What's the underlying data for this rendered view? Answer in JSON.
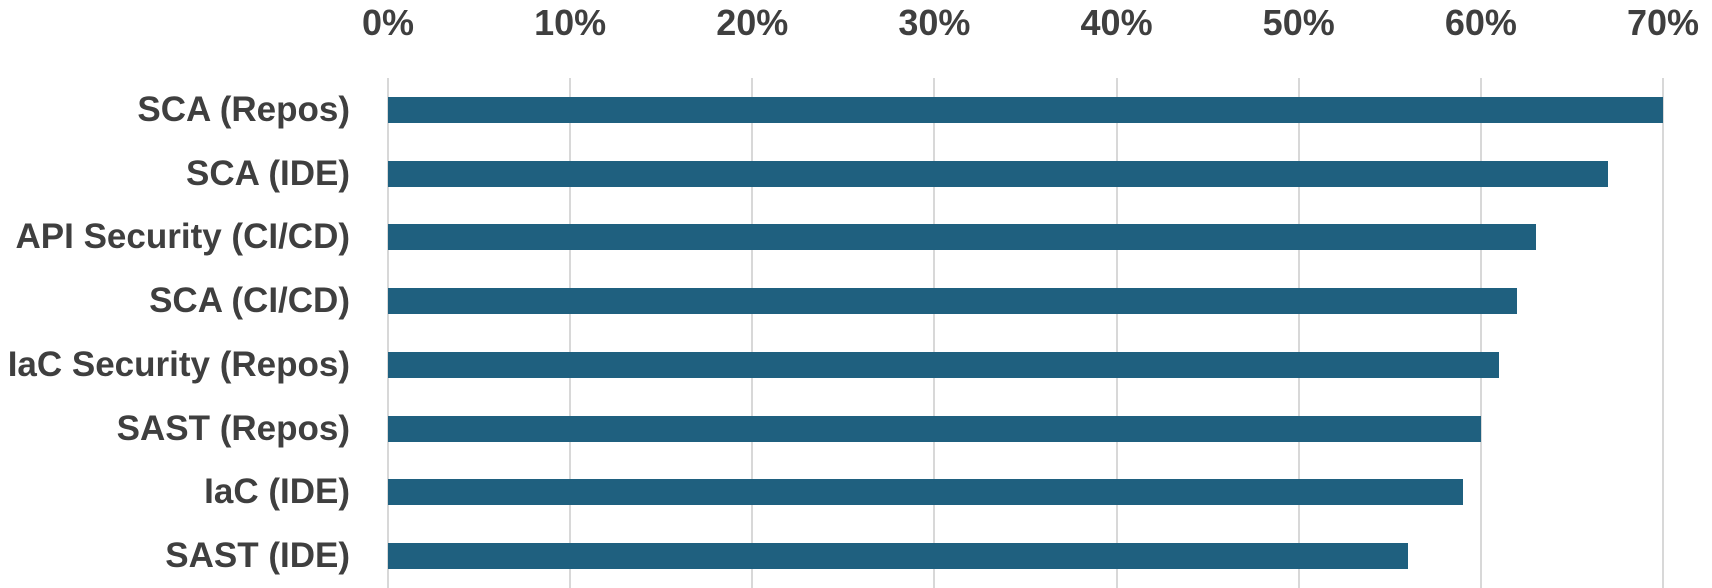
{
  "chart_data": {
    "type": "bar",
    "orientation": "horizontal",
    "title": "",
    "categories": [
      "SCA (Repos)",
      "SCA (IDE)",
      "API Security (CI/CD)",
      "SCA (CI/CD)",
      "IaC Security (Repos)",
      "SAST (Repos)",
      "IaC (IDE)",
      "SAST (IDE)"
    ],
    "values": [
      70,
      67,
      63,
      62,
      61,
      60,
      59,
      56
    ],
    "value_unit": "%",
    "x_ticks": [
      "0%",
      "10%",
      "20%",
      "30%",
      "40%",
      "50%",
      "60%",
      "70%"
    ],
    "xlim": [
      0,
      70
    ],
    "grid": true,
    "gridline_interval": 10,
    "legend": "none",
    "axis_position": "top",
    "colors": {
      "bar": "#1F607F",
      "gridline": "#D8D8D8",
      "text": "#3F3F3F",
      "background": "#FFFFFF"
    }
  }
}
